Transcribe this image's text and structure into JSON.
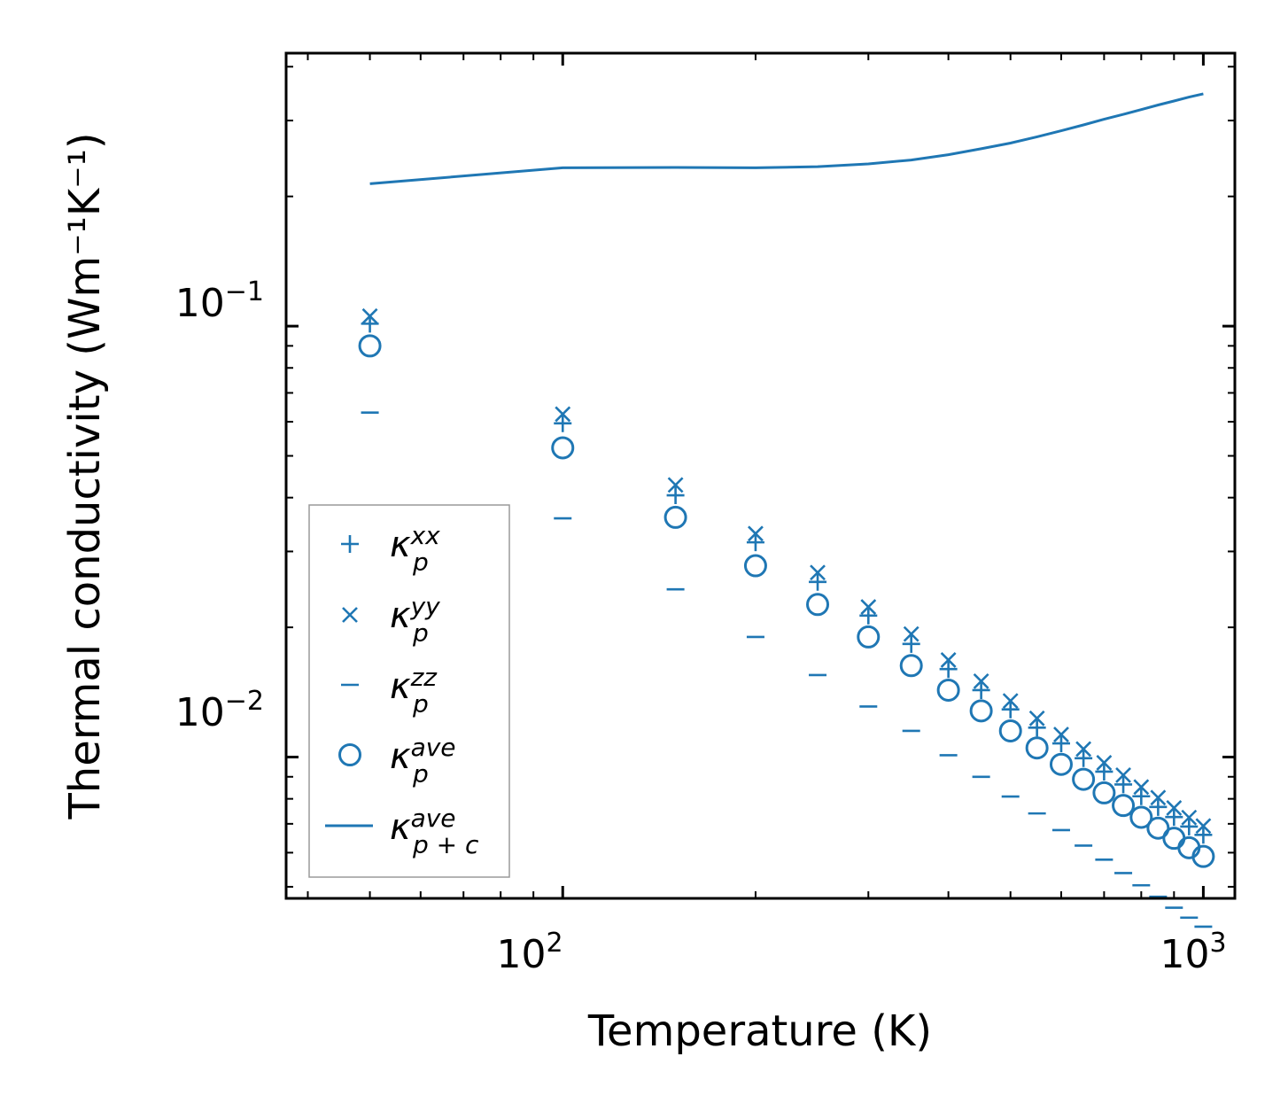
{
  "chart_data": {
    "type": "scatter",
    "title": "",
    "xlabel": "Temperature (K)",
    "ylabel": "Thermal conductivity (Wm⁻¹K⁻¹)",
    "xscale": "log",
    "yscale": "log",
    "xlim": [
      37,
      1120
    ],
    "ylim": [
      0.0047,
      0.43
    ],
    "color": "#1f77b4",
    "x_ticks": [
      {
        "base": "10",
        "exp": "2"
      },
      {
        "base": "10",
        "exp": "3"
      }
    ],
    "y_ticks": [
      {
        "base": "10",
        "exp": "−1"
      },
      {
        "base": "10",
        "exp": "−2"
      }
    ],
    "x": [
      50,
      100,
      150,
      200,
      250,
      300,
      350,
      400,
      450,
      500,
      550,
      600,
      650,
      700,
      750,
      800,
      850,
      900,
      950,
      1000
    ],
    "series": [
      {
        "name": "kxx",
        "label_base": "κ",
        "label_sup": "xx",
        "label_sub": "p",
        "marker": "plus",
        "values": [
          0.1013,
          0.0595,
          0.0405,
          0.0315,
          0.0255,
          0.0213,
          0.0183,
          0.016,
          0.0143,
          0.0129,
          0.0117,
          0.01076,
          0.00994,
          0.00925,
          0.00864,
          0.00811,
          0.00766,
          0.00726,
          0.0069,
          0.0066
        ]
      },
      {
        "name": "kyy",
        "label_base": "κ",
        "label_sup": "yy",
        "label_sub": "p",
        "marker": "x",
        "values": [
          0.1055,
          0.0625,
          0.0428,
          0.033,
          0.0268,
          0.0223,
          0.0193,
          0.0168,
          0.015,
          0.0135,
          0.0123,
          0.01128,
          0.01044,
          0.0097,
          0.00908,
          0.00852,
          0.00805,
          0.00762,
          0.00724,
          0.00692
        ]
      },
      {
        "name": "kzz",
        "label_base": "κ",
        "label_sup": "zz",
        "label_sub": "p",
        "marker": "hline",
        "values": [
          0.063,
          0.0358,
          0.0245,
          0.019,
          0.0155,
          0.0131,
          0.0115,
          0.0101,
          0.009,
          0.0081,
          0.0074,
          0.00677,
          0.00623,
          0.00578,
          0.00538,
          0.00504,
          0.00474,
          0.00447,
          0.00424,
          0.00404
        ]
      },
      {
        "name": "kave",
        "label_base": "κ",
        "label_sup": "ave",
        "label_sub": "p",
        "marker": "circle",
        "values": [
          0.09,
          0.0522,
          0.036,
          0.0278,
          0.0226,
          0.019,
          0.0163,
          0.0143,
          0.0128,
          0.0115,
          0.0105,
          0.00962,
          0.00888,
          0.00826,
          0.00772,
          0.00725,
          0.00684,
          0.00648,
          0.00616,
          0.00588
        ]
      },
      {
        "name": "kave_pc",
        "label_base": "κ",
        "label_sup": "ave",
        "label_sub": "p + c",
        "marker": "line",
        "x": [
          50,
          100,
          150,
          200,
          250,
          300,
          350,
          400,
          450,
          500,
          550,
          600,
          650,
          700,
          750,
          800,
          850,
          900,
          950,
          1000
        ],
        "values": [
          0.214,
          0.233,
          0.2335,
          0.233,
          0.2345,
          0.238,
          0.243,
          0.25,
          0.258,
          0.266,
          0.275,
          0.284,
          0.293,
          0.302,
          0.31,
          0.318,
          0.326,
          0.333,
          0.34,
          0.346
        ]
      }
    ],
    "legend": {
      "position": "lower-left",
      "frame": true
    },
    "grid": false
  }
}
